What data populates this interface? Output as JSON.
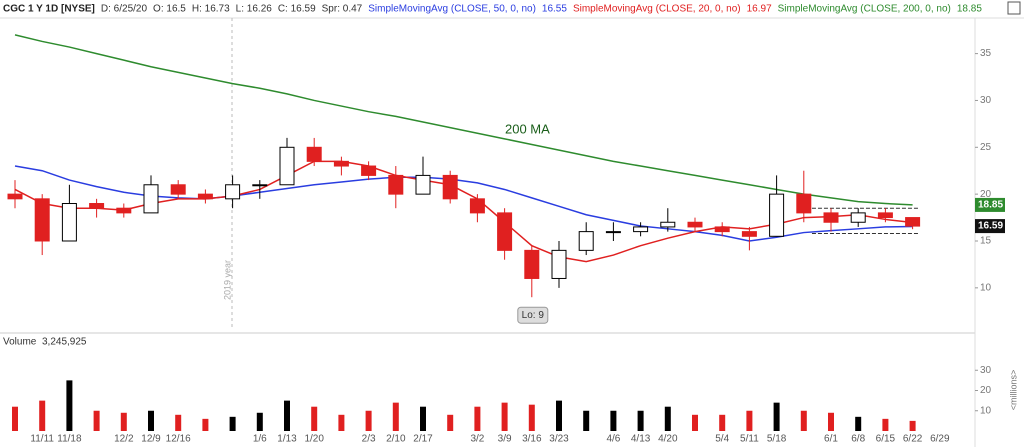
{
  "chart_data": {
    "type": "candlestick",
    "header": {
      "symbol": "CGC 1 Y 1D [NYSE]",
      "date": "D: 6/25/20",
      "open": "O: 16.5",
      "high": "H: 16.73",
      "low": "L: 16.26",
      "close": "C: 16.59",
      "spread": "Spr: 0.47"
    },
    "categories": [
      null,
      "11/11",
      "11/18",
      null,
      "12/2",
      "12/9",
      "12/16",
      null,
      null,
      "1/6",
      "1/13",
      "1/20",
      null,
      "2/3",
      "2/10",
      "2/17",
      null,
      "3/2",
      "3/9",
      "3/16",
      "3/23",
      null,
      "4/6",
      "4/13",
      "4/20",
      null,
      "5/4",
      "5/11",
      "5/18",
      null,
      "6/1",
      "6/8",
      "6/15",
      "6/22",
      "6/29"
    ],
    "open": [
      20,
      19.5,
      15,
      19,
      18.5,
      18,
      21,
      20,
      19.5,
      21,
      21,
      25,
      23.5,
      23,
      22,
      20,
      22,
      19.5,
      18,
      14,
      11,
      14,
      16,
      16,
      16.5,
      17,
      16.5,
      16,
      15.5,
      20,
      18,
      17,
      18,
      17.5,
      null
    ],
    "high": [
      21.5,
      20,
      21,
      19.5,
      19,
      22,
      21.5,
      20.5,
      22,
      21.5,
      26,
      26,
      24,
      23.5,
      23,
      24,
      22.5,
      20,
      18.5,
      14.5,
      15,
      17,
      17,
      17,
      18.5,
      17.5,
      17,
      16.5,
      22,
      22.5,
      18.5,
      18.5,
      18.5,
      17.5,
      null
    ],
    "low": [
      18.5,
      13.5,
      15,
      17.5,
      17.5,
      18,
      19.5,
      19,
      18.5,
      19.5,
      21,
      23,
      22,
      21.5,
      18.5,
      20,
      19,
      17,
      13,
      9,
      10,
      13.5,
      15,
      15.5,
      16,
      16,
      15.5,
      14,
      15.5,
      17,
      16,
      16.5,
      17,
      16.26,
      null
    ],
    "close": [
      19.5,
      15,
      19,
      18.5,
      18,
      21,
      20,
      19.5,
      21,
      21,
      25,
      23.5,
      23,
      22,
      20,
      22,
      19.5,
      18,
      14,
      11,
      14,
      16,
      16,
      16.5,
      17,
      16.5,
      16,
      15.5,
      20,
      18,
      17,
      18,
      17.5,
      16.59,
      null
    ],
    "colors": {
      "up": "#000000",
      "down": "#e02020"
    },
    "series": [
      {
        "name": "SimpleMovingAvg (CLOSE, 50, 0, no)",
        "last": "16.55",
        "color": "#2a3de0",
        "values": [
          23,
          22.5,
          21.5,
          20.8,
          20.2,
          19.8,
          19.6,
          19.5,
          19.8,
          20.2,
          20.6,
          21,
          21.3,
          21.6,
          21.8,
          21.8,
          21.6,
          21.2,
          20.5,
          19.6,
          18.7,
          17.8,
          17.2,
          16.6,
          16.3,
          16,
          15.6,
          15,
          15.4,
          15.9,
          16.1,
          16.3,
          16.5,
          16.55,
          null
        ]
      },
      {
        "name": "SimpleMovingAvg (CLOSE, 20, 0, no)",
        "last": "16.97",
        "color": "#e02020",
        "values": [
          20.5,
          19,
          18.5,
          18.5,
          18.3,
          19,
          19.5,
          19.5,
          19.8,
          20.5,
          22,
          23.5,
          23.5,
          23,
          22,
          21.5,
          21,
          19.5,
          17,
          14.5,
          13.3,
          12.8,
          13.5,
          14.5,
          15.3,
          16,
          16.5,
          16.3,
          16.8,
          17.5,
          17.6,
          17.8,
          17.3,
          16.97,
          null
        ]
      },
      {
        "name": "SimpleMovingAvg (CLOSE, 200, 0, no)",
        "last": "18.85",
        "color": "#2e8b2e",
        "values": [
          37,
          36.3,
          35.7,
          35,
          34.3,
          33.6,
          33,
          32.4,
          31.8,
          31.3,
          30.7,
          30,
          29.4,
          28.8,
          28.3,
          27.7,
          27.1,
          26.5,
          25.9,
          25.3,
          24.7,
          24.1,
          23.5,
          23,
          22.5,
          22,
          21.5,
          21,
          20.5,
          20,
          19.6,
          19.2,
          19,
          18.85,
          null
        ]
      }
    ],
    "ylim": [
      5.5,
      38.8
    ],
    "yticks": [
      10,
      15,
      20,
      25,
      30,
      35
    ],
    "grid": false,
    "annotations": {
      "ma_label": "200 MA",
      "low_label": "Lo: 9",
      "year_label": "2019 year"
    },
    "levels": [
      18.5,
      15.8
    ],
    "volume": {
      "title": "Volume",
      "last": "3,245,925",
      "unit": "<millions>",
      "ylim": [
        0,
        40
      ],
      "yticks": [
        10,
        20,
        30
      ],
      "values": [
        12,
        15,
        25,
        10,
        9,
        10,
        8,
        6,
        7,
        9,
        15,
        12,
        8,
        10,
        14,
        12,
        8,
        12,
        14,
        13,
        15,
        10,
        10,
        10,
        12,
        8,
        8,
        10,
        14,
        10,
        9,
        7,
        6,
        5,
        null
      ]
    }
  }
}
